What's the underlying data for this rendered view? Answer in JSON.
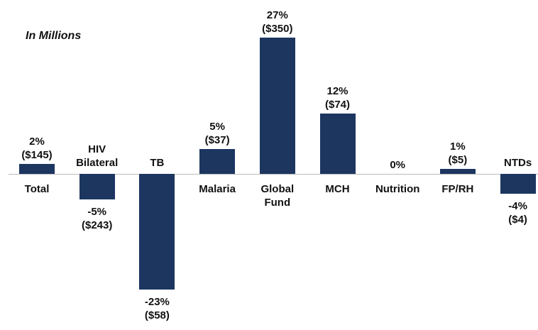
{
  "chart_data": {
    "type": "bar",
    "subtitle": "In Millions",
    "categories": [
      "Total",
      "HIV Bilateral",
      "TB",
      "Malaria",
      "Global Fund",
      "MCH",
      "Nutrition",
      "FP/RH",
      "NTDs"
    ],
    "values": [
      2,
      -5,
      -23,
      5,
      27,
      12,
      0,
      1,
      -4
    ],
    "value_labels": [
      "2%",
      "-5%",
      "-23%",
      "5%",
      "27%",
      "12%",
      "0%",
      "1%",
      "-4%"
    ],
    "dollar_labels": [
      "($145)",
      "($243)",
      "($58)",
      "($37)",
      "($350)",
      "($74)",
      null,
      "($5)",
      "($4)"
    ],
    "color": "#1c3660"
  }
}
